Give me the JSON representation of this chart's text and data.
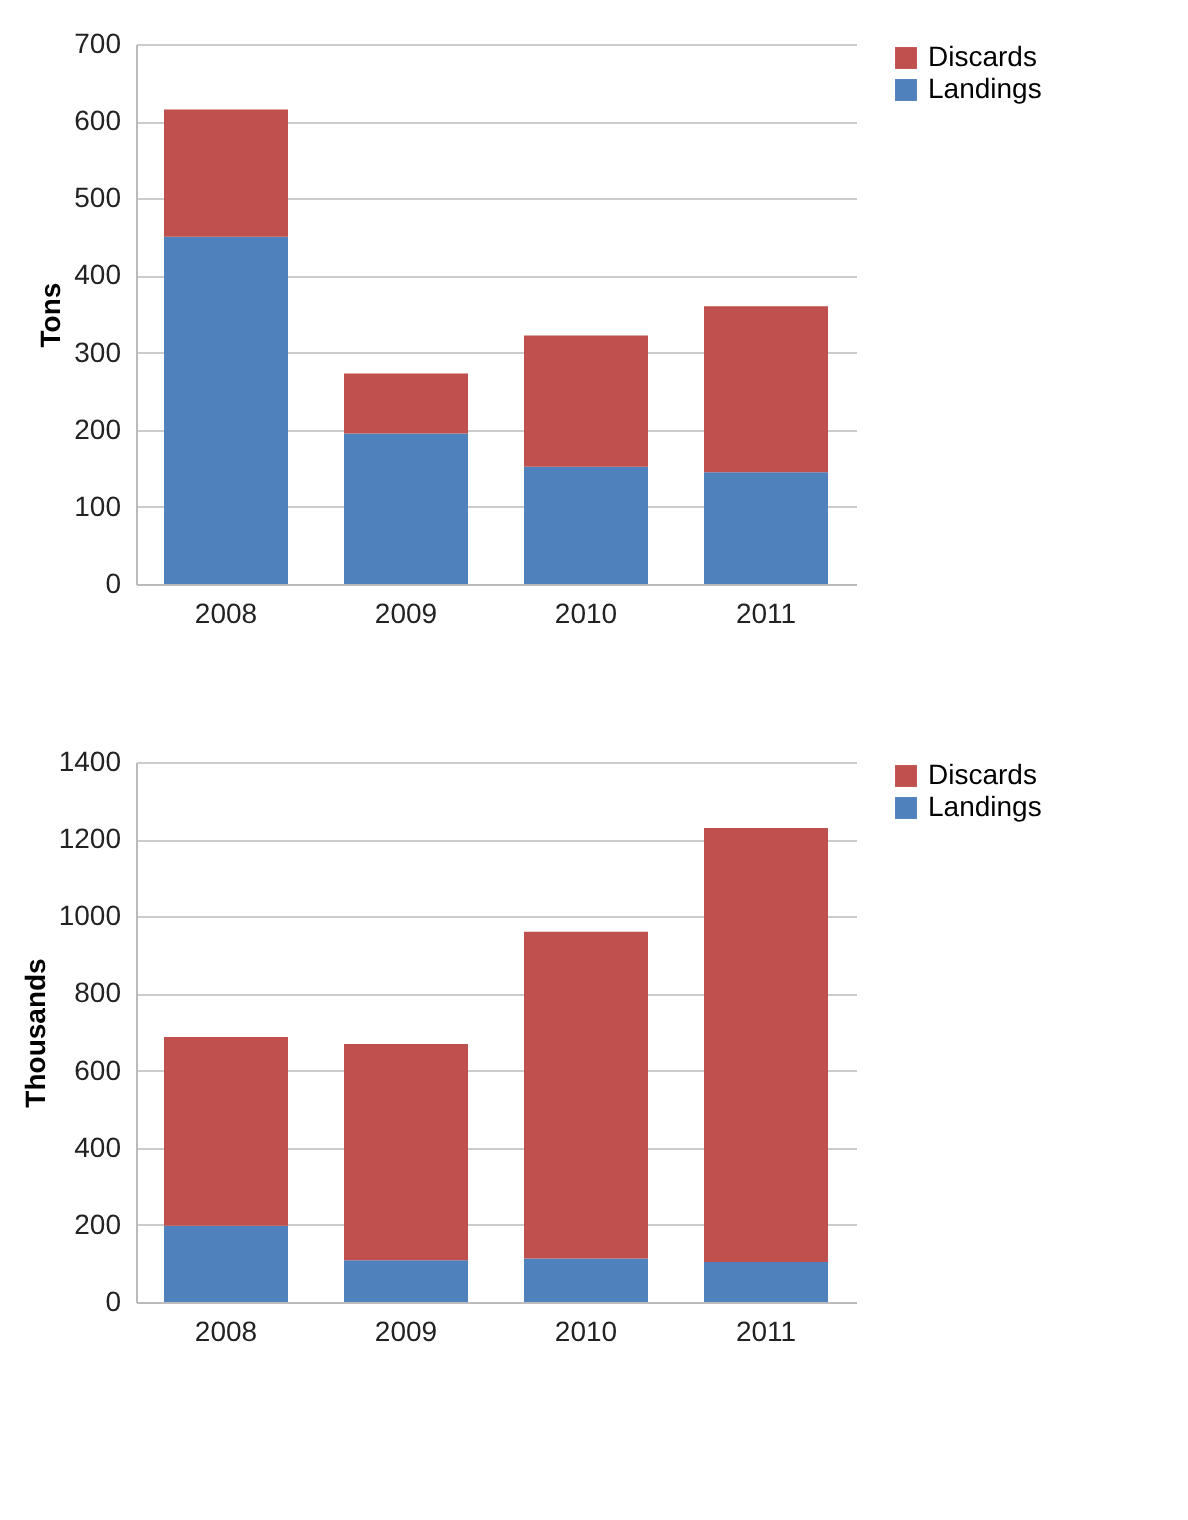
{
  "chart_data": [
    {
      "type": "bar",
      "ylabel": "Tons",
      "categories": [
        "2008",
        "2009",
        "2010",
        "2011"
      ],
      "stacked": true,
      "series": [
        {
          "name": "Landings",
          "color": "#4f81bd",
          "values": [
            450,
            195,
            152,
            145
          ]
        },
        {
          "name": "Discards",
          "color": "#c0504d",
          "values": [
            165,
            78,
            170,
            215
          ]
        }
      ],
      "ylim": [
        0,
        700
      ],
      "yticks": [
        0,
        100,
        200,
        300,
        400,
        500,
        600,
        700
      ],
      "grid": "y",
      "legend": "right"
    },
    {
      "type": "bar",
      "ylabel": "Thousands",
      "categories": [
        "2008",
        "2009",
        "2010",
        "2011"
      ],
      "stacked": true,
      "series": [
        {
          "name": "Landings",
          "color": "#4f81bd",
          "values": [
            198,
            108,
            113,
            104
          ]
        },
        {
          "name": "Discards",
          "color": "#c0504d",
          "values": [
            489,
            561,
            847,
            1125
          ]
        }
      ],
      "ylim": [
        0,
        1400
      ],
      "yticks": [
        0,
        200,
        400,
        600,
        800,
        1000,
        1200,
        1400
      ],
      "grid": "y",
      "legend": "right"
    }
  ]
}
